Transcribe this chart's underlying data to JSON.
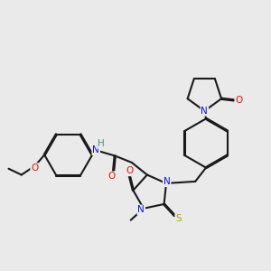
{
  "bg_color": "#EAEAEA",
  "bond_color": "#1A1A1A",
  "bond_width": 1.5,
  "dbo": 0.018,
  "atom_colors": {
    "N": "#1010EE",
    "O": "#EE1010",
    "S": "#AAAA00",
    "H": "#558888",
    "C": "#1A1A1A"
  },
  "afs": 7.5
}
